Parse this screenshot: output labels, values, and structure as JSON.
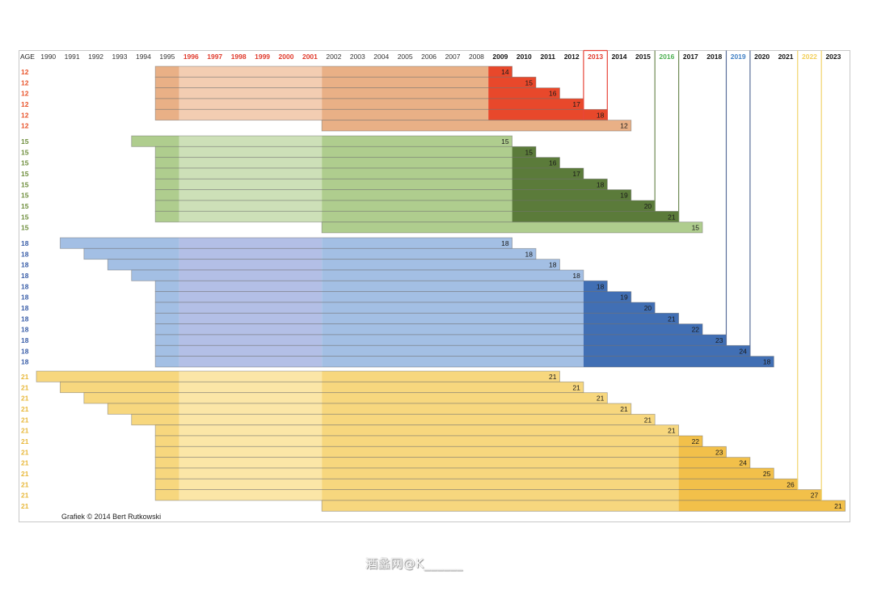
{
  "chart_data": {
    "type": "bar",
    "subtype": "timeline-gantt",
    "header_label": "AGE",
    "years": [
      1990,
      1991,
      1992,
      1993,
      1994,
      1995,
      1996,
      1997,
      1998,
      1999,
      2000,
      2001,
      2002,
      2003,
      2004,
      2005,
      2006,
      2007,
      2008,
      2009,
      2010,
      2011,
      2012,
      2013,
      2014,
      2015,
      2016,
      2017,
      2018,
      2019,
      2020,
      2021,
      2022,
      2023
    ],
    "header_year_colors": {
      "1996": "#e03a2c",
      "1997": "#e03a2c",
      "1998": "#e03a2c",
      "1999": "#e03a2c",
      "2000": "#e03a2c",
      "2001": "#e03a2c",
      "2013": "#e03a2c",
      "2016": "#4caf50",
      "2019": "#3f7fc4",
      "2022": "#f2cf5a"
    },
    "bold_years_from": 2009,
    "light_band_years": [
      1996,
      2001
    ],
    "highlight_columns": [
      {
        "year": 2013,
        "color": "#e8453a",
        "group": 0,
        "through_row": 5,
        "boxed": true
      },
      {
        "year": 2016,
        "color": "#6f8a55",
        "group": 1,
        "through_row": 8
      },
      {
        "year": 2019,
        "color": "#5a6f9a",
        "group": 2,
        "through_row": 11
      },
      {
        "year": 2022,
        "color": "#f2d46a",
        "group": 3,
        "through_row": 12
      }
    ],
    "groups": [
      {
        "age": "12",
        "label_color": "#e8532a",
        "colors": {
          "medium": "#e9b086",
          "light": "#f3cdb2",
          "dark": "#e8482b"
        },
        "rows": [
          {
            "start": 1995,
            "end": 2009,
            "dark_from": 2009,
            "label": "14"
          },
          {
            "start": 1995,
            "end": 2010,
            "dark_from": 2009,
            "label": "15"
          },
          {
            "start": 1995,
            "end": 2011,
            "dark_from": 2009,
            "label": "16"
          },
          {
            "start": 1995,
            "end": 2012,
            "dark_from": 2009,
            "label": "17"
          },
          {
            "start": 1995,
            "end": 2013,
            "dark_from": 2009,
            "label": "18"
          },
          {
            "start": 2002,
            "end": 2014,
            "dark_from": null,
            "label": "12"
          }
        ]
      },
      {
        "age": "15",
        "label_color": "#6e8e3c",
        "colors": {
          "medium": "#afcd8e",
          "light": "#cde0b8",
          "dark": "#5b7b3a"
        },
        "rows": [
          {
            "start": 1994,
            "end": 2009,
            "dark_from": null,
            "label": "15"
          },
          {
            "start": 1995,
            "end": 2010,
            "dark_from": 2010,
            "label": "15"
          },
          {
            "start": 1995,
            "end": 2011,
            "dark_from": 2010,
            "label": "16"
          },
          {
            "start": 1995,
            "end": 2012,
            "dark_from": 2010,
            "label": "17"
          },
          {
            "start": 1995,
            "end": 2013,
            "dark_from": 2010,
            "label": "18"
          },
          {
            "start": 1995,
            "end": 2014,
            "dark_from": 2010,
            "label": "19"
          },
          {
            "start": 1995,
            "end": 2015,
            "dark_from": 2010,
            "label": "20"
          },
          {
            "start": 1995,
            "end": 2016,
            "dark_from": 2010,
            "label": "21"
          },
          {
            "start": 2002,
            "end": 2017,
            "dark_from": null,
            "label": "15"
          }
        ]
      },
      {
        "age": "18",
        "label_color": "#3a5ea8",
        "colors": {
          "medium": "#a3bfe4",
          "light": "#b3bfe6",
          "dark": "#416fb4"
        },
        "rows": [
          {
            "start": 1991,
            "end": 2009,
            "dark_from": null,
            "label": "18"
          },
          {
            "start": 1992,
            "end": 2010,
            "dark_from": null,
            "label": "18"
          },
          {
            "start": 1993,
            "end": 2011,
            "dark_from": null,
            "label": "18"
          },
          {
            "start": 1994,
            "end": 2012,
            "dark_from": null,
            "label": "18"
          },
          {
            "start": 1995,
            "end": 2013,
            "dark_from": 2013,
            "label": "18"
          },
          {
            "start": 1995,
            "end": 2014,
            "dark_from": 2013,
            "label": "19"
          },
          {
            "start": 1995,
            "end": 2015,
            "dark_from": 2013,
            "label": "20"
          },
          {
            "start": 1995,
            "end": 2016,
            "dark_from": 2013,
            "label": "21"
          },
          {
            "start": 1995,
            "end": 2017,
            "dark_from": 2013,
            "label": "22"
          },
          {
            "start": 1995,
            "end": 2018,
            "dark_from": 2013,
            "label": "23"
          },
          {
            "start": 1995,
            "end": 2019,
            "dark_from": 2013,
            "label": "24"
          },
          {
            "start": 1995,
            "end": 2020,
            "dark_from": 2013,
            "label": "18"
          }
        ]
      },
      {
        "age": "21",
        "label_color": "#e8b83a",
        "colors": {
          "medium": "#f7d77e",
          "light": "#fbe6a7",
          "dark": "#f2c04a"
        },
        "rows": [
          {
            "start": 1990,
            "end": 2011,
            "dark_from": null,
            "label": "21"
          },
          {
            "start": 1991,
            "end": 2012,
            "dark_from": null,
            "label": "21"
          },
          {
            "start": 1992,
            "end": 2013,
            "dark_from": null,
            "label": "21"
          },
          {
            "start": 1993,
            "end": 2014,
            "dark_from": null,
            "label": "21"
          },
          {
            "start": 1994,
            "end": 2015,
            "dark_from": null,
            "label": "21"
          },
          {
            "start": 1995,
            "end": 2016,
            "dark_from": null,
            "label": "21"
          },
          {
            "start": 1995,
            "end": 2017,
            "dark_from": 2017,
            "label": "22"
          },
          {
            "start": 1995,
            "end": 2018,
            "dark_from": 2017,
            "label": "23"
          },
          {
            "start": 1995,
            "end": 2019,
            "dark_from": 2017,
            "label": "24"
          },
          {
            "start": 1995,
            "end": 2020,
            "dark_from": 2017,
            "label": "25"
          },
          {
            "start": 1995,
            "end": 2021,
            "dark_from": 2017,
            "label": "26"
          },
          {
            "start": 1995,
            "end": 2022,
            "dark_from": 2017,
            "label": "27"
          },
          {
            "start": 2002,
            "end": 2023,
            "dark_from": 2017,
            "label": "21"
          }
        ]
      }
    ],
    "credit": "Grafiek © 2014 Bert Rutkowski"
  },
  "watermark": "酒蠡网@K______"
}
